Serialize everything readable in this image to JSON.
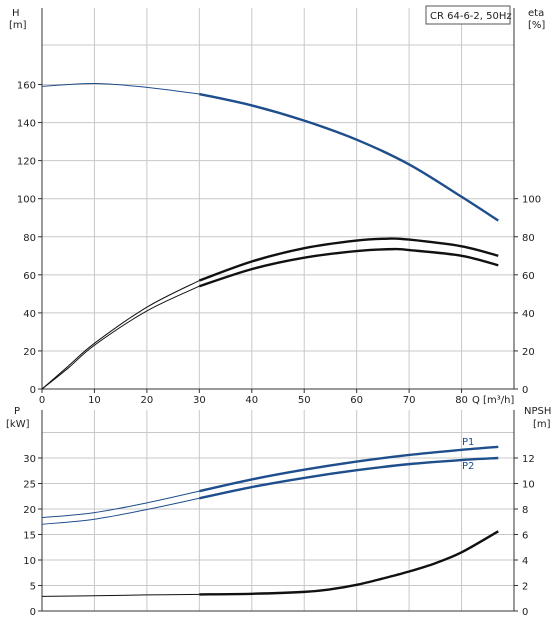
{
  "chart_data": [
    {
      "type": "line",
      "title": "CR 64-6-2, 50Hz",
      "x_unit_label": "Q [m³/h]",
      "xlim": [
        0,
        90
      ],
      "x_ticks": [
        0,
        10,
        20,
        30,
        40,
        50,
        60,
        70,
        80
      ],
      "grid": true,
      "y_left": {
        "label_top": "H",
        "label_bottom": "[m]",
        "ylim": [
          0,
          180
        ],
        "ticks": [
          0,
          20,
          40,
          60,
          80,
          100,
          120,
          140,
          160
        ]
      },
      "y_right": {
        "label_top": "eta",
        "label_bottom": "[%]",
        "ylim": [
          0,
          180
        ],
        "ticks": [
          0,
          20,
          40,
          60,
          80,
          100
        ]
      },
      "series": [
        {
          "axis": "left",
          "color": "#1f4e8c",
          "thin_until_x": 30,
          "points": [
            [
              0,
              159
            ],
            [
              10,
              160.5
            ],
            [
              20,
              158.5
            ],
            [
              30,
              155
            ],
            [
              40,
              149
            ],
            [
              50,
              141
            ],
            [
              60,
              131
            ],
            [
              70,
              118
            ],
            [
              80,
              101
            ],
            [
              87,
              88.5
            ]
          ]
        },
        {
          "axis": "right",
          "color": "#111111",
          "thin_until_x": 30,
          "points": [
            [
              0,
              0
            ],
            [
              5,
              12
            ],
            [
              10,
              24
            ],
            [
              20,
              43
            ],
            [
              30,
              57
            ],
            [
              40,
              67
            ],
            [
              50,
              74
            ],
            [
              60,
              78
            ],
            [
              66,
              79
            ],
            [
              70,
              78.5
            ],
            [
              80,
              75
            ],
            [
              87,
              70
            ]
          ]
        },
        {
          "axis": "right",
          "color": "#111111",
          "thin_until_x": 30,
          "points": [
            [
              0,
              0
            ],
            [
              5,
              11
            ],
            [
              10,
              23
            ],
            [
              20,
              41
            ],
            [
              30,
              54
            ],
            [
              40,
              63
            ],
            [
              50,
              69
            ],
            [
              60,
              72.5
            ],
            [
              67,
              73.5
            ],
            [
              70,
              73
            ],
            [
              80,
              70
            ],
            [
              87,
              65
            ]
          ]
        }
      ]
    },
    {
      "type": "line",
      "xlim": [
        0,
        90
      ],
      "x_ticks": [
        0,
        10,
        20,
        30,
        40,
        50,
        60,
        70,
        80
      ],
      "grid": true,
      "y_left": {
        "label_top": "P",
        "label_bottom": "[kW]",
        "ylim": [
          0,
          35
        ],
        "ticks": [
          0,
          5,
          10,
          15,
          20,
          25,
          30
        ]
      },
      "y_right": {
        "label_top": "NPSH",
        "label_bottom": "[m]",
        "ylim": [
          0,
          14
        ],
        "ticks": [
          0,
          2,
          4,
          6,
          8,
          10,
          12
        ]
      },
      "series": [
        {
          "name": "P1",
          "axis": "left",
          "color": "#1f4e8c",
          "thin_until_x": 30,
          "points": [
            [
              0,
              18.3
            ],
            [
              10,
              19.3
            ],
            [
              20,
              21.2
            ],
            [
              30,
              23.5
            ],
            [
              40,
              25.8
            ],
            [
              50,
              27.7
            ],
            [
              60,
              29.3
            ],
            [
              70,
              30.6
            ],
            [
              80,
              31.6
            ],
            [
              87,
              32.2
            ]
          ]
        },
        {
          "name": "P2",
          "axis": "left",
          "color": "#1f4e8c",
          "thin_until_x": 30,
          "points": [
            [
              0,
              17.0
            ],
            [
              10,
              18.0
            ],
            [
              20,
              19.9
            ],
            [
              30,
              22.1
            ],
            [
              40,
              24.3
            ],
            [
              50,
              26.1
            ],
            [
              60,
              27.6
            ],
            [
              70,
              28.8
            ],
            [
              80,
              29.6
            ],
            [
              87,
              30.0
            ]
          ]
        },
        {
          "axis": "right",
          "color": "#111111",
          "thin_until_x": 30,
          "points": [
            [
              0,
              1.15
            ],
            [
              10,
              1.2
            ],
            [
              20,
              1.26
            ],
            [
              30,
              1.3
            ],
            [
              40,
              1.35
            ],
            [
              50,
              1.5
            ],
            [
              55,
              1.7
            ],
            [
              60,
              2.05
            ],
            [
              65,
              2.55
            ],
            [
              70,
              3.1
            ],
            [
              75,
              3.75
            ],
            [
              80,
              4.6
            ],
            [
              87,
              6.25
            ]
          ]
        }
      ]
    }
  ]
}
